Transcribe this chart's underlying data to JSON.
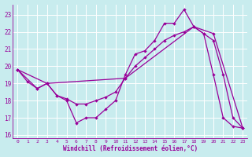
{
  "xlabel": "Windchill (Refroidissement éolien,°C)",
  "bg_color": "#c8ecee",
  "line_color": "#990099",
  "grid_color": "#ffffff",
  "xlim": [
    -0.5,
    23.5
  ],
  "ylim": [
    15.8,
    23.6
  ],
  "yticks": [
    16,
    17,
    18,
    19,
    20,
    21,
    22,
    23
  ],
  "xticks": [
    0,
    1,
    2,
    3,
    4,
    5,
    6,
    7,
    8,
    9,
    10,
    11,
    12,
    13,
    14,
    15,
    16,
    17,
    18,
    19,
    20,
    21,
    22,
    23
  ],
  "line1_x": [
    0,
    1,
    2,
    3,
    4,
    5,
    6,
    7,
    8,
    9,
    10,
    11,
    12,
    13,
    14,
    15,
    16,
    17,
    18,
    19,
    20,
    21,
    22,
    23
  ],
  "line1_y": [
    19.8,
    19.1,
    18.7,
    19.0,
    18.3,
    18.0,
    16.7,
    17.0,
    17.0,
    17.5,
    18.0,
    19.5,
    20.7,
    20.9,
    21.5,
    22.5,
    22.5,
    23.3,
    22.3,
    21.9,
    19.5,
    17.0,
    16.5,
    16.4
  ],
  "line2_x": [
    0,
    2,
    3,
    4,
    5,
    6,
    7,
    8,
    9,
    10,
    11,
    12,
    13,
    14,
    15,
    16,
    17,
    18,
    19,
    20,
    21,
    22,
    23
  ],
  "line2_y": [
    19.8,
    18.7,
    19.0,
    18.3,
    18.1,
    17.8,
    17.8,
    18.0,
    18.2,
    18.5,
    19.3,
    20.0,
    20.5,
    21.0,
    21.5,
    21.8,
    22.0,
    22.3,
    21.9,
    21.5,
    19.5,
    17.0,
    16.4
  ],
  "line3_x": [
    0,
    3,
    11,
    18,
    20,
    23
  ],
  "line3_y": [
    19.8,
    19.0,
    19.3,
    22.3,
    21.9,
    16.4
  ]
}
